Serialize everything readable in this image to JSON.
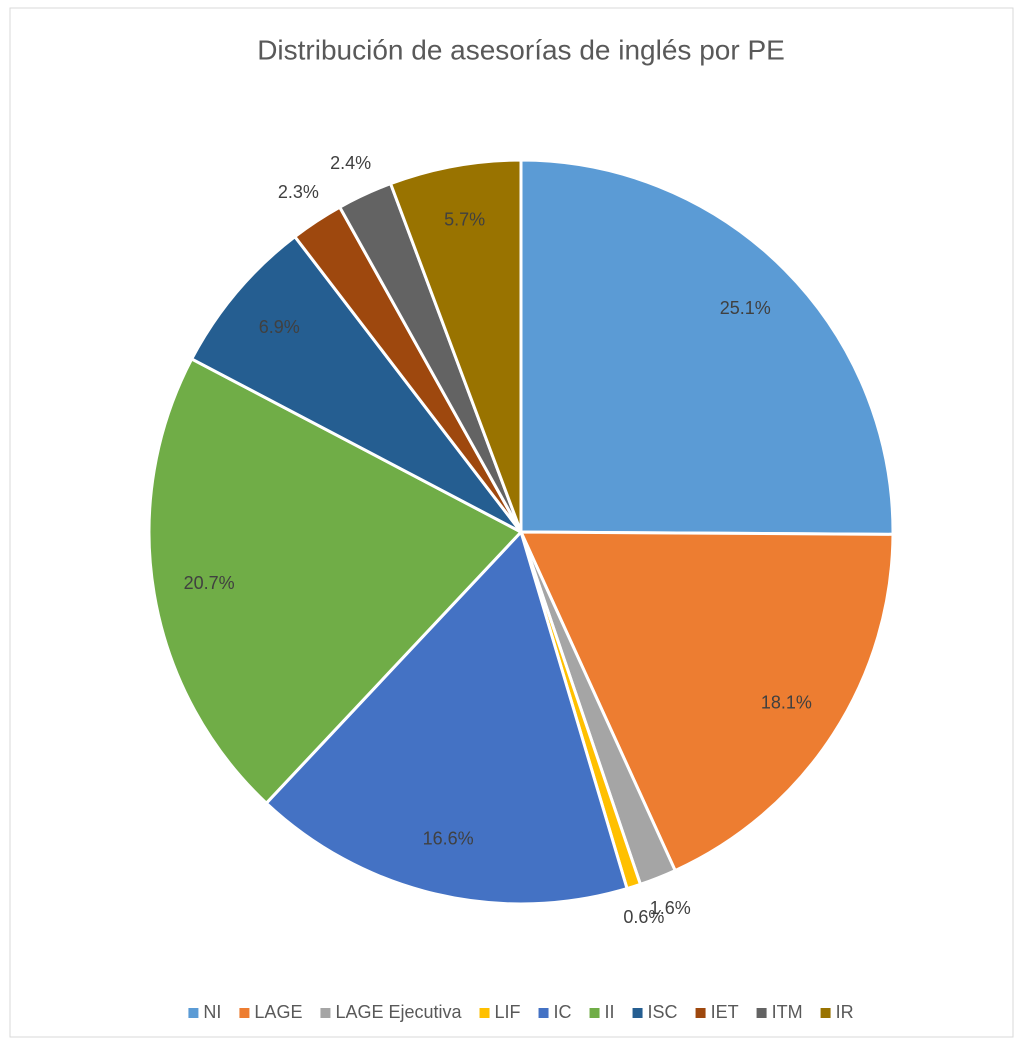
{
  "chart_data": {
    "type": "pie",
    "title": "Distribución de asesorías de inglés por PE",
    "categories": [
      "NI",
      "LAGE",
      "LAGE Ejecutiva",
      "LIF",
      "IC",
      "II",
      "ISC",
      "IET",
      "ITM",
      "IR"
    ],
    "values": [
      25.1,
      18.1,
      1.6,
      0.6,
      16.6,
      20.7,
      6.9,
      2.3,
      2.4,
      5.7
    ],
    "value_labels": [
      "25.1%",
      "18.1%",
      "1.6%",
      "0.6%",
      "16.6%",
      "20.7%",
      "6.9%",
      "2.3%",
      "2.4%",
      "5.7%"
    ],
    "colors": [
      "#5b9bd5",
      "#ed7d31",
      "#a5a5a5",
      "#ffc000",
      "#4472c4",
      "#70ad47",
      "#255e91",
      "#9e480e",
      "#636363",
      "#997300"
    ],
    "legend": "bottom"
  }
}
